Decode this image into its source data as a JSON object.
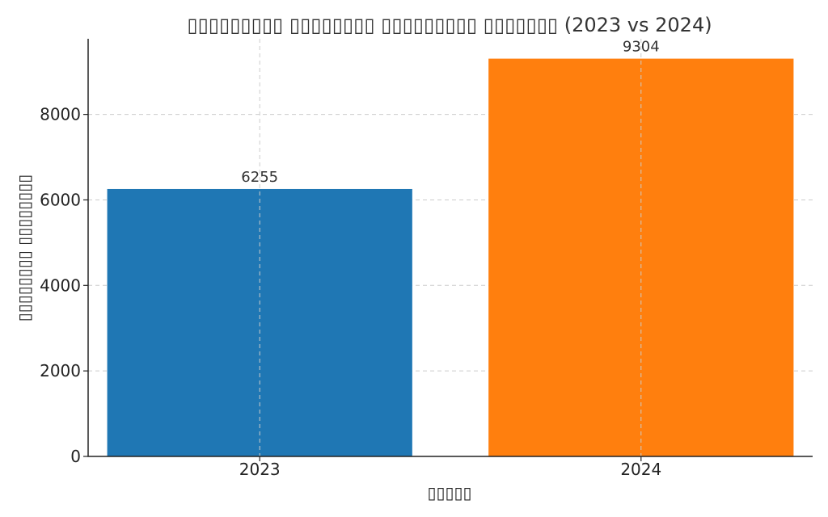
{
  "chart_data": {
    "type": "bar",
    "title": "▯▯▯▯▯▯▯▯▯ ▯▯▯▯▯▯▯▯ ▯▯▯▯▯▯▯▯▯ ▯▯▯▯▯▯▯ (2023 vs 2024)",
    "xlabel": "▯▯▯▯▯",
    "ylabel": "▯▯▯▯▯▯▯▯ ▯▯▯▯▯▯▯▯",
    "categories": [
      "2023",
      "2024"
    ],
    "values": [
      6255,
      9304
    ],
    "colors": [
      "#1f77b4",
      "#ff7f0e"
    ],
    "ylim": [
      0,
      9769
    ],
    "yticks": [
      0,
      2000,
      4000,
      6000,
      8000
    ],
    "grid": true,
    "legend": "none"
  }
}
